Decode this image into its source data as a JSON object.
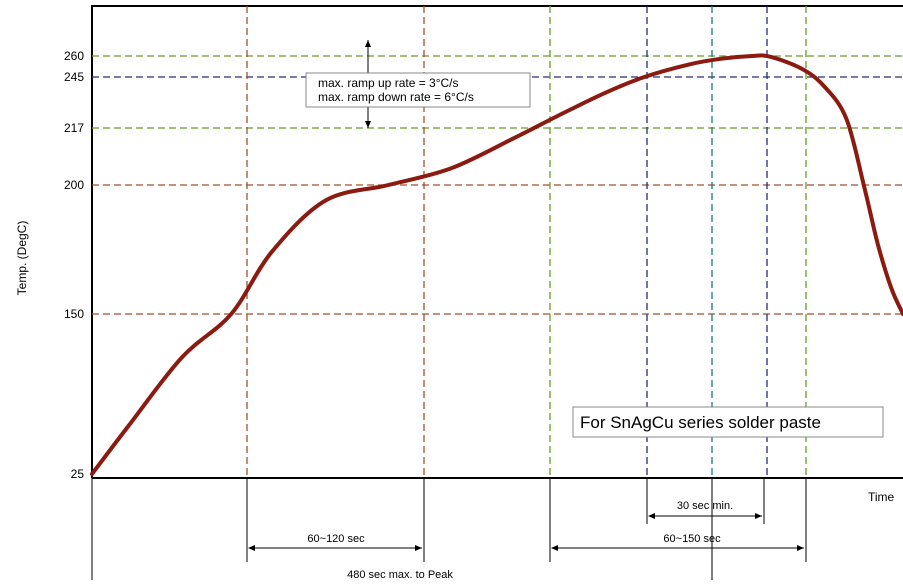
{
  "chart_data": {
    "type": "line",
    "title": "",
    "xlabel": "Time",
    "ylabel": "Temp. (DegC)",
    "y_ticks": [
      25,
      150,
      200,
      217,
      245,
      260
    ],
    "grid": true,
    "series": [
      {
        "name": "",
        "color": "#8b1a10",
        "points": [
          [
            0,
            25
          ],
          [
            40,
            62
          ],
          [
            100,
            116
          ],
          [
            155,
            150
          ],
          [
            200,
            174
          ],
          [
            260,
            194
          ],
          [
            330,
            200
          ],
          [
            400,
            205
          ],
          [
            470,
            214
          ],
          [
            520,
            224
          ],
          [
            570,
            236
          ],
          [
            615,
            245
          ],
          [
            665,
            254
          ],
          [
            700,
            258
          ],
          [
            735,
            260
          ],
          [
            755,
            259.5
          ],
          [
            790,
            251
          ],
          [
            815,
            240
          ],
          [
            840,
            222
          ],
          [
            860,
            199
          ],
          [
            875,
            177
          ],
          [
            890,
            160
          ],
          [
            903,
            150
          ]
        ]
      }
    ],
    "horizontal_guides": [
      {
        "y": 260,
        "color": "#6a9a2a"
      },
      {
        "y": 245,
        "color": "#2a2a7a"
      },
      {
        "y": 217,
        "color": "#6a9a2a"
      },
      {
        "y": 200,
        "color": "#a0522d"
      },
      {
        "y": 150,
        "color": "#a0522d"
      }
    ],
    "vertical_guides": [
      {
        "x": 155,
        "color": "#a0522d"
      },
      {
        "x": 330,
        "color": "#a0522d"
      },
      {
        "x": 455,
        "color": "#6a9a2a"
      },
      {
        "x": 555,
        "color": "#2a2a7a"
      },
      {
        "x": 620,
        "color": "#1a7a7a"
      },
      {
        "x": 675,
        "color": "#2a2a7a"
      },
      {
        "x": 710,
        "color": "#6a9a2a"
      }
    ],
    "annotations": {
      "ramp_note_line1": "max. ramp up rate = 3°C/s",
      "ramp_note_line2": "max. ramp down rate = 6°C/s",
      "series_note": "For SnAgCu series solder paste",
      "span_60_120": "60~120 sec",
      "span_30_min": "30 sec min.",
      "span_60_150": "60~150 sec",
      "span_480_max": "480 sec max. to Peak"
    }
  }
}
